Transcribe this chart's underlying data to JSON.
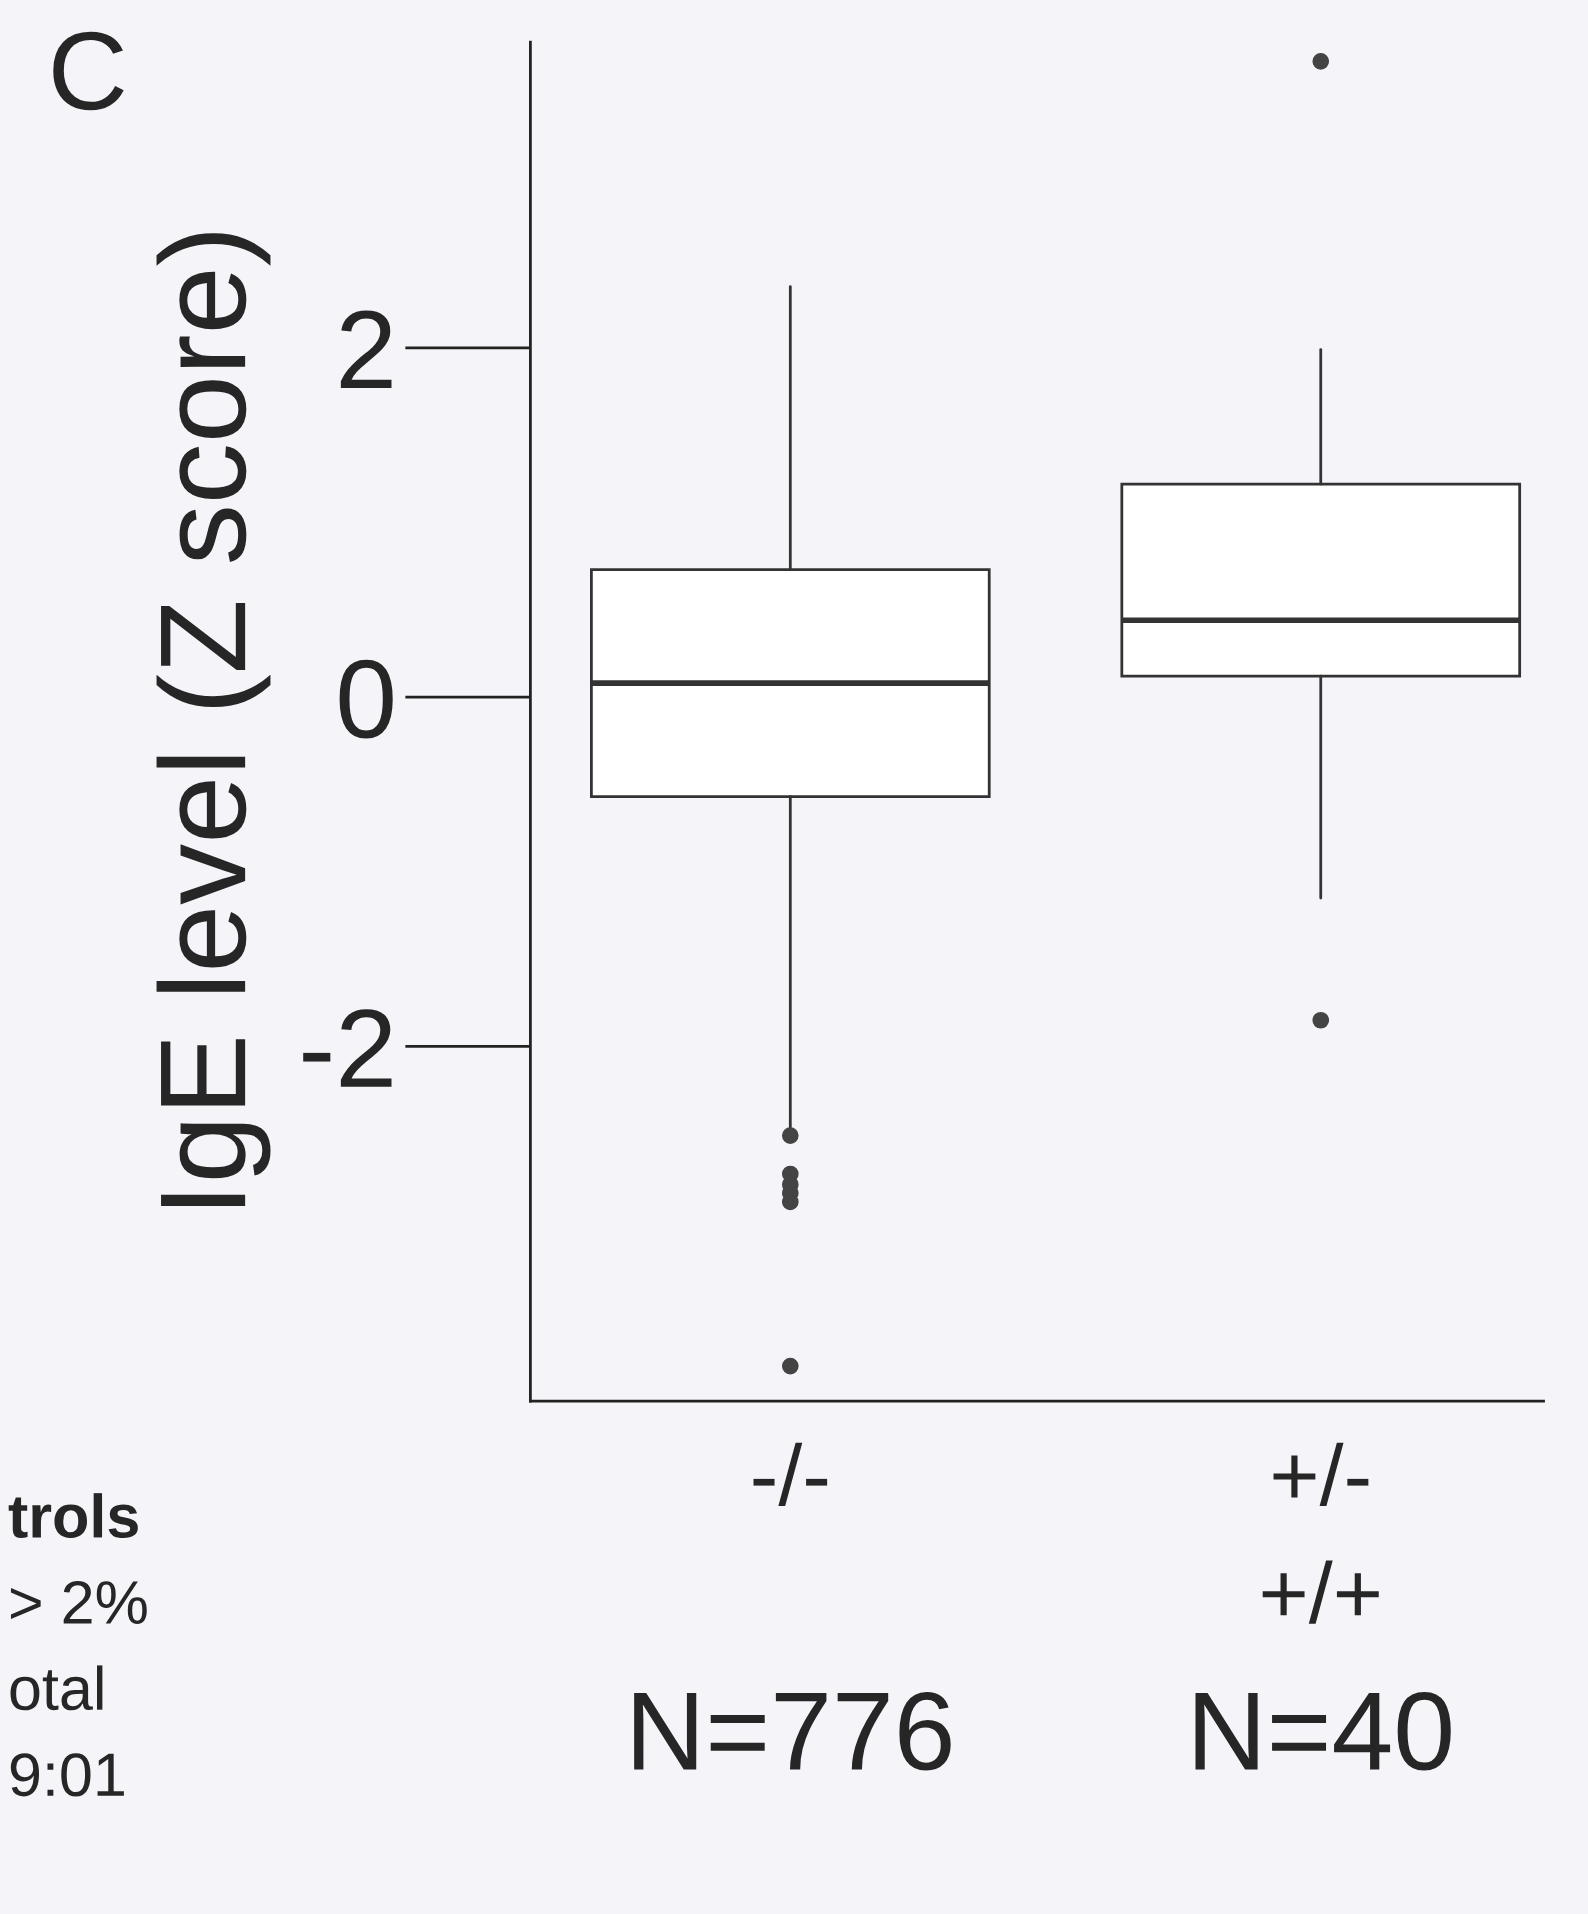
{
  "chart_data": {
    "type": "box",
    "ylabel": "IgE level (Z score)",
    "categories": [
      "-/-",
      "+/-\n+/+"
    ],
    "boxes": [
      {
        "low": -2.49,
        "q1": -0.57,
        "median": 0.08,
        "q3": 0.73,
        "high": 2.35,
        "outliers": [
          -2.51,
          -2.73,
          -2.79,
          -2.84,
          -2.89,
          -3.83
        ]
      },
      {
        "low": -1.15,
        "q1": 0.12,
        "median": 0.44,
        "q3": 1.22,
        "high": 1.99,
        "outliers": [
          3.64,
          -1.85
        ]
      }
    ],
    "ylim": [
      -4.03,
      3.75
    ],
    "yticks": [
      -2,
      0,
      2
    ],
    "grid": false,
    "annotations": [
      "C",
      "N=776",
      "N=40",
      "trols",
      "> 2%",
      "otal",
      "9:01"
    ]
  }
}
